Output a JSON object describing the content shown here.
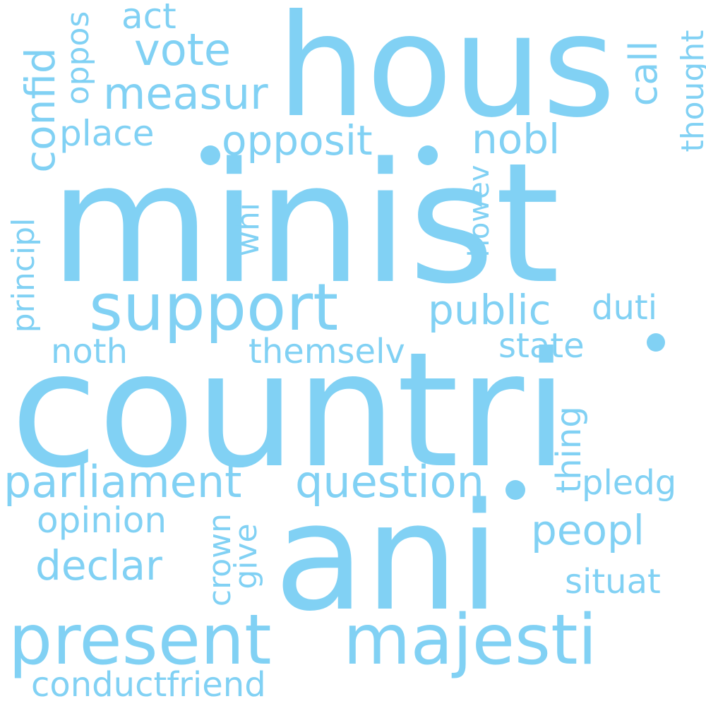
{
  "colors": {
    "background": "#ffffff",
    "word": "#81d1f4"
  },
  "words": {
    "minist": "minist",
    "countri": "countri",
    "hous": "hous",
    "ani": "ani",
    "present": "present",
    "majesti": "majesti",
    "support": "support",
    "parliament": "parliament",
    "question": "question",
    "vote": "vote",
    "measur": "measur",
    "opposit": "opposit",
    "public": "public",
    "declar": "declar",
    "peopl": "peopl",
    "nobl": "nobl",
    "place": "place",
    "act": "act",
    "opinion": "opinion",
    "conductfriend": "conductfriend",
    "duti": "duti",
    "state": "state",
    "noth": "noth",
    "themselv": "themselv",
    "situat": "situat",
    "pledg": "pledg",
    "confid": "confid",
    "oppos": "oppos",
    "principl": "principl",
    "call": "call",
    "thought": "thought",
    "howev": "howev",
    "whi": "whi",
    "thing": "thing",
    "give": "give",
    "crown": "crown"
  }
}
